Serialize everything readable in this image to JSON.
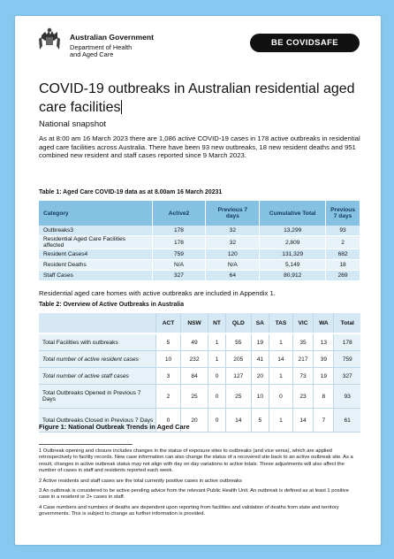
{
  "header": {
    "gov_name": "Australian Government",
    "dept_line1": "Department of Health",
    "dept_line2": "and Aged Care",
    "covid_badge_a": "BE COVID",
    "covid_badge_b": "SAFE"
  },
  "title": "COVID-19 outbreaks in Australian residential aged care facilities",
  "subtitle": "National snapshot",
  "intro": "As at 8:00 am 16 March 2023 there are 1,086 active COVID-19 cases in 178 active outbreaks in residential aged care facilities across Australia. There have been 93 new outbreaks, 18 new resident deaths and 951 combined new resident and staff cases reported since 9 March 2023.",
  "table1": {
    "caption": "Table 1: Aged Care COVID-19 data as at 8.00am 16 March 20231",
    "headers": [
      "Category",
      "Active2",
      "Previous 7 days",
      "Cumulative Total",
      "Previous 7 days"
    ],
    "rows": [
      [
        "Outbreaks3",
        "178",
        "32",
        "13,299",
        "93"
      ],
      [
        "Residential Aged Care Facilities affected",
        "178",
        "32",
        "2,809",
        "2"
      ],
      [
        "Resident Cases4",
        "759",
        "120",
        "131,329",
        "682"
      ],
      [
        "Resident Deaths",
        "N/A",
        "N/A",
        "5,149",
        "18"
      ],
      [
        "Staff Cases",
        "327",
        "64",
        "80,912",
        "269"
      ]
    ]
  },
  "para2": "Residential aged care homes with active outbreaks are included in Appendix 1.",
  "table2": {
    "caption": "Table 2: Overview of Active Outbreaks in Australia",
    "headers": [
      "",
      "ACT",
      "NSW",
      "NT",
      "QLD",
      "SA",
      "TAS",
      "VIC",
      "WA",
      "Total"
    ],
    "rows": [
      [
        "Total Facilities with outbreaks",
        "5",
        "49",
        "1",
        "55",
        "19",
        "1",
        "35",
        "13",
        "178"
      ],
      [
        "Total number of active resident cases",
        "10",
        "232",
        "1",
        "205",
        "41",
        "14",
        "217",
        "39",
        "759"
      ],
      [
        "Total number of active staff cases",
        "3",
        "84",
        "0",
        "127",
        "20",
        "1",
        "73",
        "19",
        "327"
      ],
      [
        "Total Outbreaks Opened in Previous 7 Days",
        "2",
        "25",
        "0",
        "25",
        "10",
        "0",
        "23",
        "8",
        "93"
      ],
      [
        "Total Outbreaks Closed in Previous 7 Days",
        "0",
        "20",
        "0",
        "14",
        "5",
        "1",
        "14",
        "7",
        "61"
      ]
    ]
  },
  "figure_caption": "Figure 1: National Outbreak Trends in Aged Care",
  "footnotes": [
    "1 Outbreak opening and closure includes changes in the status of exposure sites to outbreaks (and vice versa), which are applied retrospectively to facility records. New case information can also change the status of a recovered site back to an active outbreak site. As a result, changes in active outbreak status may not align with day on day variations to active totals. These adjustments will also affect the number of cases in staff and residents reported each week.",
    "2 Active residents and staff cases are the total currently positive cases in active outbreaks",
    "3 An outbreak is considered to be active pending advice from the relevant Public Health Unit. An outbreak is defined as at least 1 positive case in a resident or 2+ cases in staff.",
    "4 Case numbers and numbers of deaths are dependent upon reporting from facilities and validation of deaths from state and territory governments. This is subject to change as further information is provided."
  ]
}
